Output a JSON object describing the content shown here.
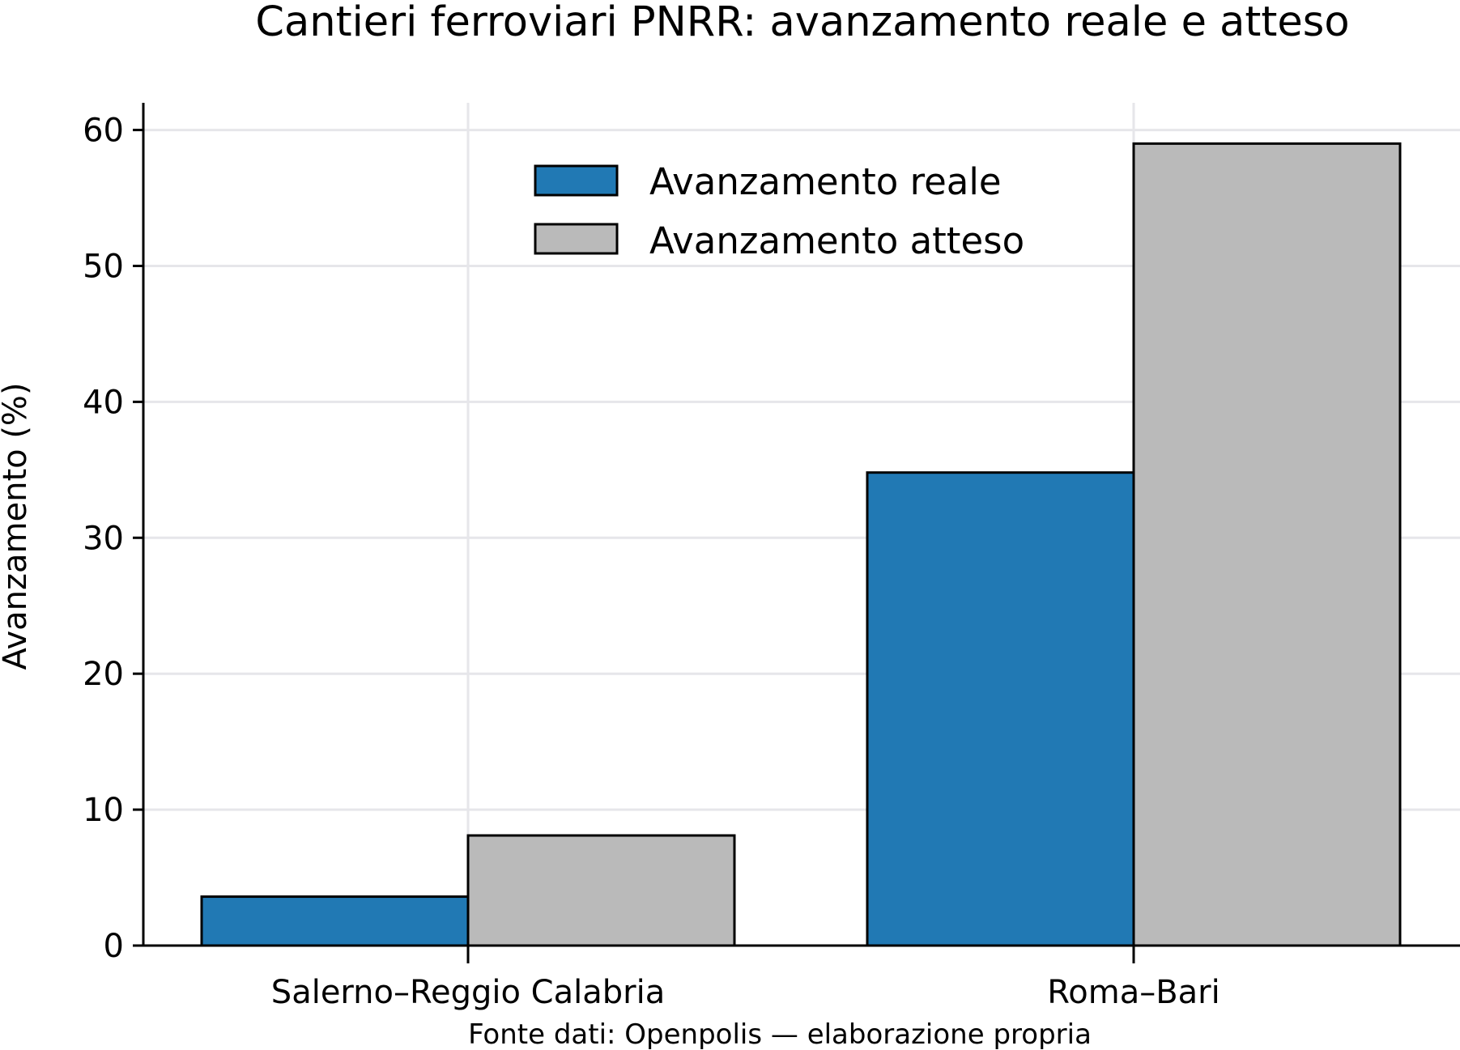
{
  "chart_data": {
    "type": "bar",
    "title": "Cantieri ferroviari PNRR: avanzamento reale e atteso",
    "xlabel": "",
    "ylabel": "Avanzamento (%)",
    "categories": [
      "Salerno–Reggio Calabria",
      "Roma–Bari"
    ],
    "series": [
      {
        "name": "Avanzamento reale",
        "values": [
          3.6,
          34.8
        ],
        "color": "#2179b4"
      },
      {
        "name": "Avanzamento atteso",
        "values": [
          8.1,
          59.0
        ],
        "color": "#bababa"
      }
    ],
    "ylim": [
      0,
      62
    ],
    "yticks": [
      0,
      10,
      20,
      30,
      40,
      50,
      60
    ],
    "ytick_labels": [
      "0",
      "10",
      "20",
      "30",
      "40",
      "50",
      "60"
    ],
    "grid": true,
    "legend_position": "top-center",
    "source_note": "Fonte dati: Openpolis — elaborazione propria"
  }
}
